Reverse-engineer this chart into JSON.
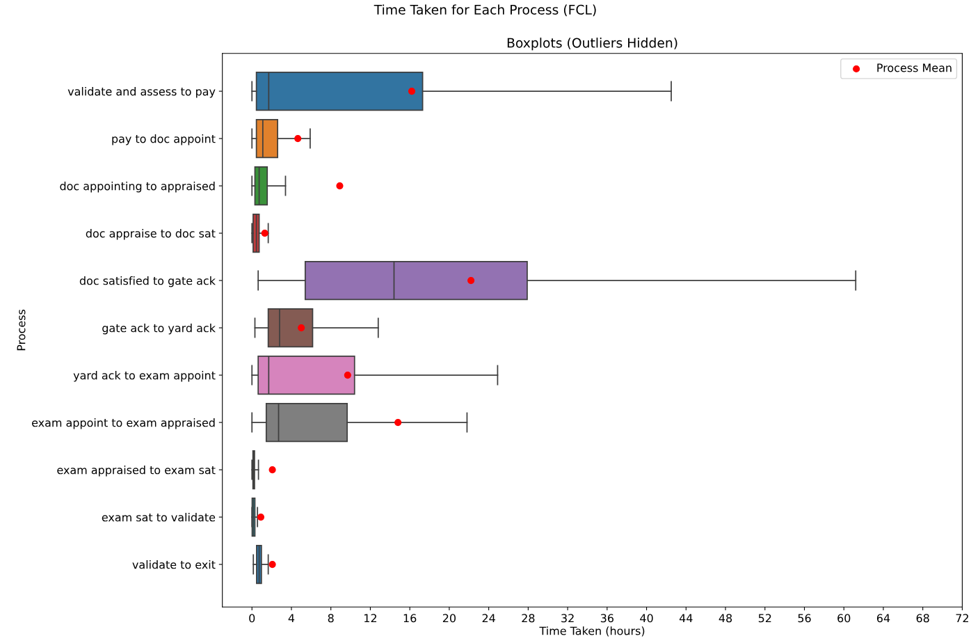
{
  "chart_data": {
    "type": "box",
    "orientation": "horizontal",
    "title": "Time Taken for Each Process (FCL)",
    "subtitle": "Boxplots (Outliers Hidden)",
    "xlabel": "Time Taken (hours)",
    "ylabel": "Process",
    "categories": [
      "validate and assess to pay",
      "pay to doc appoint",
      "doc appointing to appraised",
      "doc appraise to doc sat",
      "doc satisfied to gate ack",
      "gate ack to yard ack",
      "yard ack to exam appoint",
      "exam appoint to exam appraised",
      "exam appraised to exam sat",
      "exam sat to validate",
      "validate to exit"
    ],
    "colors": [
      "#3274a1",
      "#e1812c",
      "#3a923a",
      "#c03d3e",
      "#9372b2",
      "#845b53",
      "#d684bd",
      "#7f7f7f",
      "#a9aa35",
      "#2ea0b0",
      "#3274a1"
    ],
    "boxes": [
      {
        "low": 0,
        "q1": 0.45,
        "median": 1.7,
        "q3": 17.3,
        "high": 42.5
      },
      {
        "low": 0,
        "q1": 0.45,
        "median": 1.1,
        "q3": 2.6,
        "high": 5.9
      },
      {
        "low": 0,
        "q1": 0.3,
        "median": 0.73,
        "q3": 1.55,
        "high": 3.4
      },
      {
        "low": 0,
        "q1": 0.12,
        "median": 0.45,
        "q3": 0.73,
        "high": 1.65
      },
      {
        "low": 0.63,
        "q1": 5.4,
        "median": 14.4,
        "q3": 27.9,
        "high": 61.2
      },
      {
        "low": 0.3,
        "q1": 1.65,
        "median": 2.8,
        "q3": 6.15,
        "high": 12.8
      },
      {
        "low": 0,
        "q1": 0.63,
        "median": 1.7,
        "q3": 10.4,
        "high": 24.9
      },
      {
        "low": 0,
        "q1": 1.45,
        "median": 2.7,
        "q3": 9.65,
        "high": 21.8
      },
      {
        "low": 0,
        "q1": 0.1,
        "median": 0.17,
        "q3": 0.26,
        "high": 0.66
      },
      {
        "low": 0,
        "q1": 0.02,
        "median": 0.15,
        "q3": 0.3,
        "high": 0.56
      },
      {
        "low": 0.14,
        "q1": 0.47,
        "median": 0.73,
        "q3": 0.96,
        "high": 1.65
      }
    ],
    "series": [
      {
        "type": "scatter",
        "name": "Process Mean",
        "color": "#ff0000",
        "x": [
          "validate and assess to pay",
          "pay to doc appoint",
          "doc appointing to appraised",
          "doc appraise to doc sat",
          "doc satisfied to gate ack",
          "gate ack to yard ack",
          "yard ack to exam appoint",
          "exam appoint to exam appraised",
          "exam appraised to exam sat",
          "exam sat to validate",
          "validate to exit"
        ],
        "values": [
          16.2,
          4.65,
          8.9,
          1.3,
          22.2,
          5.0,
          9.7,
          14.8,
          2.07,
          0.9,
          2.07
        ]
      }
    ],
    "marker": "circle",
    "legend": "top right",
    "grid": false,
    "xlim": [
      -3,
      72
    ],
    "xticks": [
      0,
      4,
      8,
      12,
      16,
      20,
      24,
      28,
      32,
      36,
      40,
      44,
      48,
      52,
      56,
      60,
      64,
      68,
      72
    ]
  }
}
